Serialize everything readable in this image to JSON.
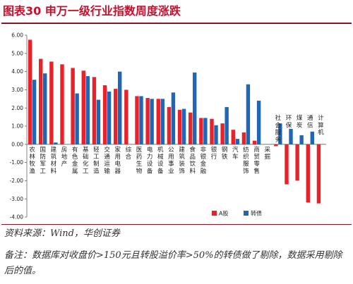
{
  "figure": {
    "title": "图表30  申万一级行业指数周度涨跌",
    "source": "资料来源：Wind，华创证券",
    "note": "备注：数据库对收盘价>150元且转股溢价率>50%的转债做了剔除，数据采用剔除后的值。"
  },
  "colors": {
    "title": "#c8102e",
    "rule": "#8a1526",
    "series_a": "#e8212b",
    "series_b": "#1f66b7"
  },
  "chart_data": {
    "type": "bar",
    "title": "",
    "xlabel": "",
    "ylabel": "",
    "ylim": [
      -4.0,
      6.0
    ],
    "yticks": [
      "6.00",
      "5.00",
      "4.00",
      "3.00",
      "2.00",
      "1.00",
      "0.00",
      "-1.00",
      "-2.00",
      "-3.00",
      "-4.00"
    ],
    "grid": false,
    "legend_position": "bottom-right",
    "categories": [
      "农林牧渔",
      "国防军工",
      "建筑材料",
      "房地产",
      "有色金属",
      "基础化工",
      "轻工制造",
      "交通运输",
      "家用电器",
      "综合",
      "医药生物",
      "电力设备",
      "机械设备",
      "公用事业",
      "建筑装饰",
      "食品饮料",
      "非银金融",
      "银行",
      "钢铁",
      "汽车",
      "纺织服饰",
      "商贸零售",
      "采掘",
      "社会服务",
      "环保",
      "煤炭",
      "通信",
      "计算机"
    ],
    "series": [
      {
        "name": "A股",
        "values": [
          5.75,
          4.7,
          4.55,
          4.4,
          4.2,
          4.05,
          3.7,
          3.25,
          3.05,
          3.0,
          2.65,
          2.55,
          2.5,
          2.05,
          1.9,
          1.75,
          1.45,
          1.4,
          1.15,
          0.8,
          0.65,
          0.2,
          0.0,
          -0.1,
          -2.2,
          -2.0,
          -3.2,
          -3.25
        ]
      },
      {
        "name": "转债",
        "values": [
          3.55,
          3.9,
          0.1,
          null,
          2.8,
          3.75,
          2.45,
          2.9,
          4.0,
          null,
          2.65,
          2.5,
          2.5,
          2.85,
          1.95,
          3.95,
          1.45,
          1.05,
          2.05,
          0.3,
          3.3,
          2.4,
          null,
          1.15,
          0.85,
          0.5,
          0.7,
          null
        ]
      }
    ]
  }
}
